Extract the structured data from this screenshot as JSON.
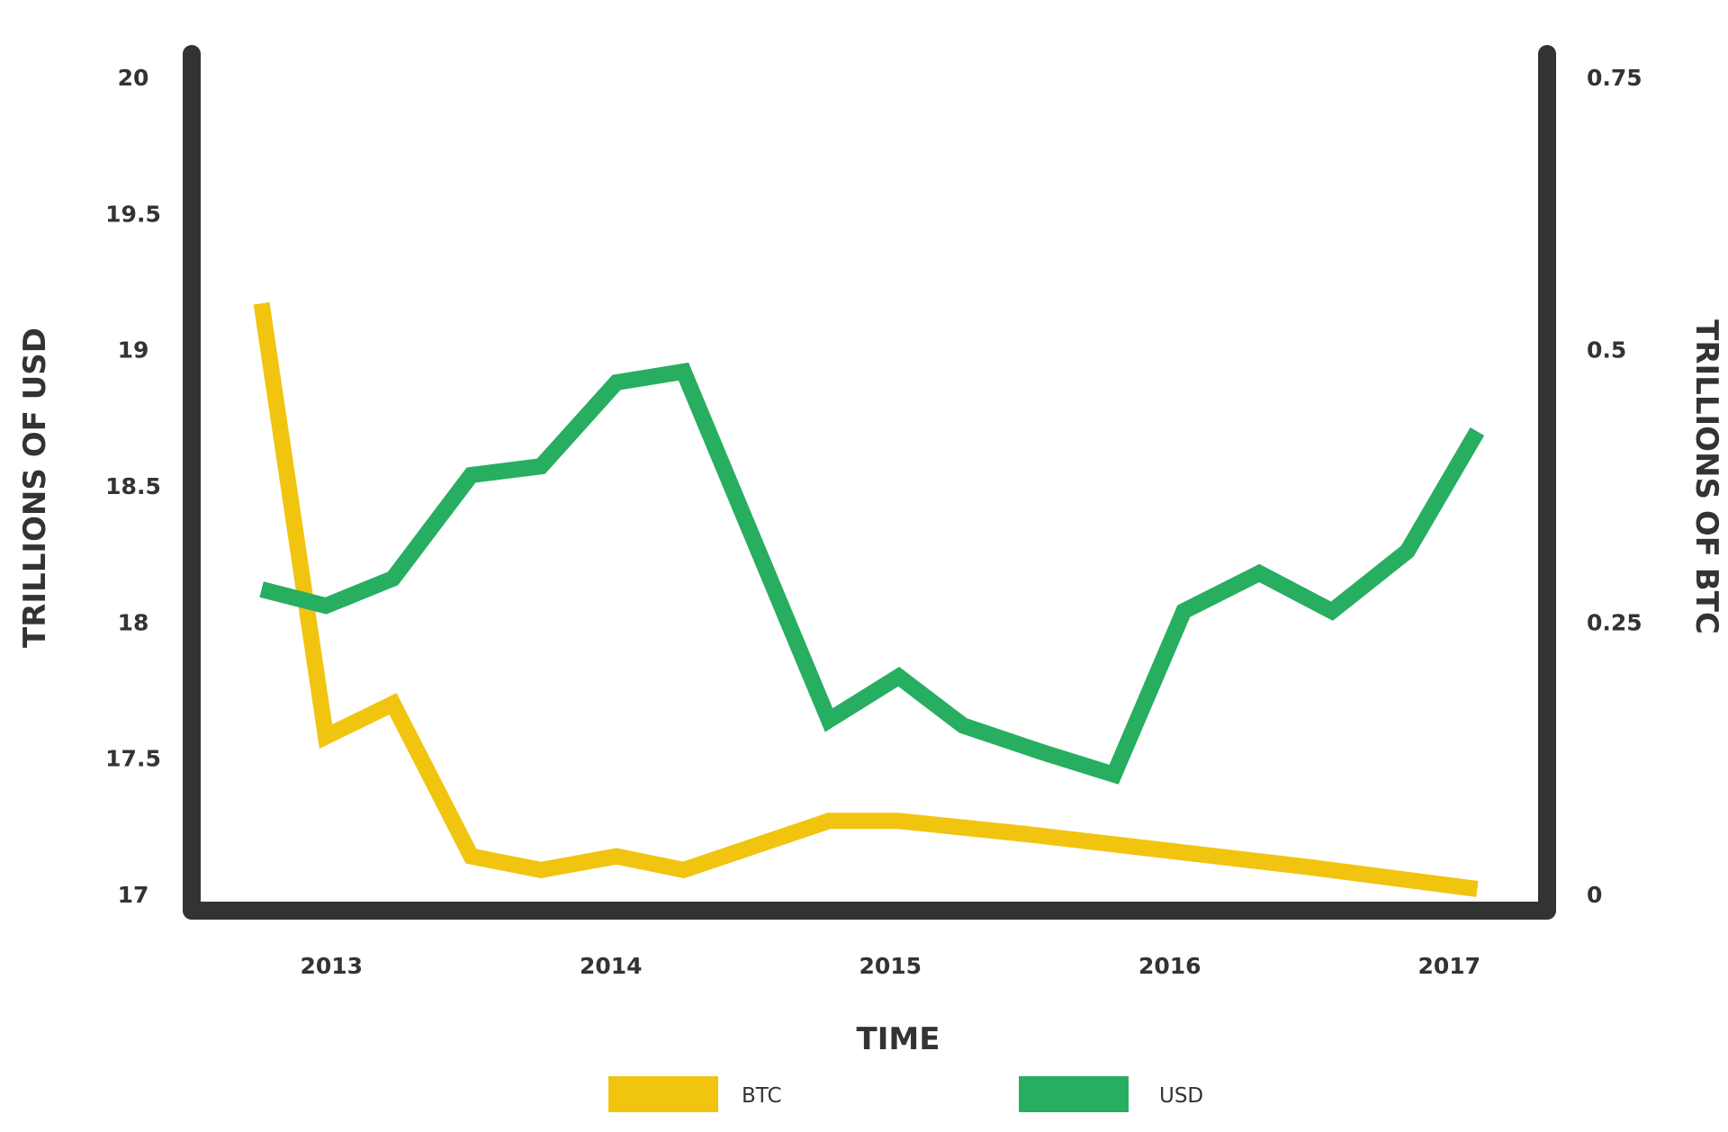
{
  "chart_data": {
    "type": "line",
    "xlabel": "TIME",
    "ylabel_left": "TRILLIONS OF USD",
    "ylabel_right": "TRILLIONS OF BTC",
    "x_ticks": [
      "2013",
      "2014",
      "2015",
      "2016",
      "2017"
    ],
    "x_tick_values": [
      2013.0,
      2014.0,
      2015.0,
      2016.0,
      2017.0
    ],
    "xlim": [
      2012.5,
      2017.35
    ],
    "y_left": {
      "ticks": [
        "20",
        "19.5",
        "19",
        "18.5",
        "18",
        "17.5",
        "17"
      ],
      "ylim": [
        17,
        20
      ]
    },
    "y_right": {
      "ticks": [
        "0.75",
        "0.5",
        "0.25",
        "0"
      ],
      "ylim": [
        0,
        0.75
      ]
    },
    "legend": {
      "placement": "bottom"
    },
    "colors": {
      "BTC": "#f1c40f",
      "USD": "#27ae60",
      "axis": "#333333"
    },
    "series": [
      {
        "name": "BTC",
        "axis": "left",
        "color": "#f1c40f",
        "points": [
          [
            2012.75,
            19.17
          ],
          [
            2012.98,
            17.58
          ],
          [
            2013.22,
            17.7
          ],
          [
            2013.5,
            17.14
          ],
          [
            2013.75,
            17.09
          ],
          [
            2014.02,
            17.14
          ],
          [
            2014.26,
            17.09
          ],
          [
            2014.78,
            17.27
          ],
          [
            2015.03,
            17.27
          ],
          [
            2015.5,
            17.22
          ],
          [
            2016.0,
            17.16
          ],
          [
            2016.5,
            17.1
          ],
          [
            2017.1,
            17.02
          ]
        ]
      },
      {
        "name": "USD",
        "axis": "right",
        "color": "#27ae60",
        "points": [
          [
            2012.75,
            0.28
          ],
          [
            2012.98,
            0.265
          ],
          [
            2013.22,
            0.29
          ],
          [
            2013.5,
            0.385
          ],
          [
            2013.75,
            0.393
          ],
          [
            2014.02,
            0.47
          ],
          [
            2014.26,
            0.48
          ],
          [
            2014.78,
            0.16
          ],
          [
            2015.03,
            0.2
          ],
          [
            2015.26,
            0.155
          ],
          [
            2015.55,
            0.13
          ],
          [
            2015.8,
            0.11
          ],
          [
            2016.05,
            0.26
          ],
          [
            2016.32,
            0.295
          ],
          [
            2016.58,
            0.26
          ],
          [
            2016.85,
            0.315
          ],
          [
            2017.1,
            0.425
          ]
        ]
      }
    ]
  }
}
